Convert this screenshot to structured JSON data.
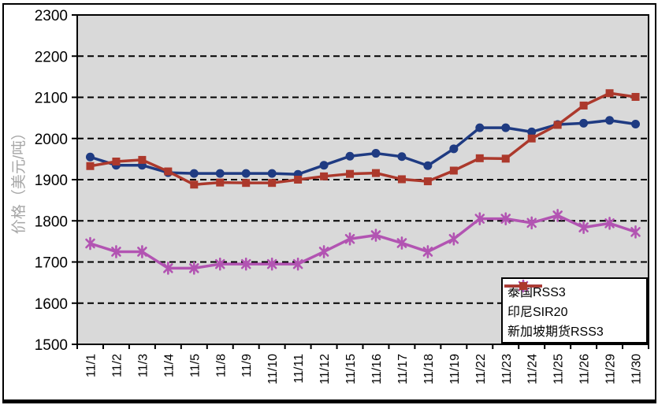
{
  "chart_data": {
    "type": "line",
    "title": "",
    "xlabel": "",
    "ylabel": "价格（美元/吨）",
    "ylim": [
      1500,
      2300
    ],
    "yticks": [
      1500,
      1600,
      1700,
      1800,
      1900,
      2000,
      2100,
      2200,
      2300
    ],
    "grid": "horizontal-dashed",
    "legend_position": "bottom-right",
    "categories": [
      "11/1",
      "11/2",
      "11/3",
      "11/4",
      "11/5",
      "11/8",
      "11/9",
      "11/10",
      "11/11",
      "11/12",
      "11/15",
      "11/16",
      "11/17",
      "11/18",
      "11/19",
      "11/22",
      "11/23",
      "11/24",
      "11/25",
      "11/26",
      "11/29",
      "11/30"
    ],
    "series": [
      {
        "name": "泰国RSS3",
        "marker": "circle",
        "color": "#1F3B82",
        "values": [
          1955,
          1935,
          1935,
          1917,
          1915,
          1915,
          1915,
          1915,
          1913,
          1935,
          1957,
          1964,
          1956,
          1934,
          1975,
          2026,
          2026,
          2016,
          2034,
          2037,
          2044,
          2035
        ]
      },
      {
        "name": "印尼SIR20",
        "marker": "asterisk",
        "color": "#B254B2",
        "values": [
          1745,
          1725,
          1725,
          1685,
          1685,
          1695,
          1695,
          1695,
          1695,
          1725,
          1756,
          1765,
          1746,
          1725,
          1756,
          1805,
          1805,
          1795,
          1813,
          1784,
          1794,
          1773
        ]
      },
      {
        "name": "新加坡期货RSS3",
        "marker": "square",
        "color": "#AC392C",
        "values": [
          1933,
          1944,
          1948,
          1920,
          1888,
          1893,
          1892,
          1892,
          1900,
          1908,
          1914,
          1916,
          1901,
          1896,
          1922,
          1952,
          1951,
          2000,
          2033,
          2080,
          2110,
          2101
        ]
      }
    ],
    "colors": {
      "plot_background": "#D9D9D9",
      "axis": "#000000",
      "gridline": "#000000",
      "tick_label": "#000000",
      "ylabel_color": "#A6A6A6"
    }
  }
}
